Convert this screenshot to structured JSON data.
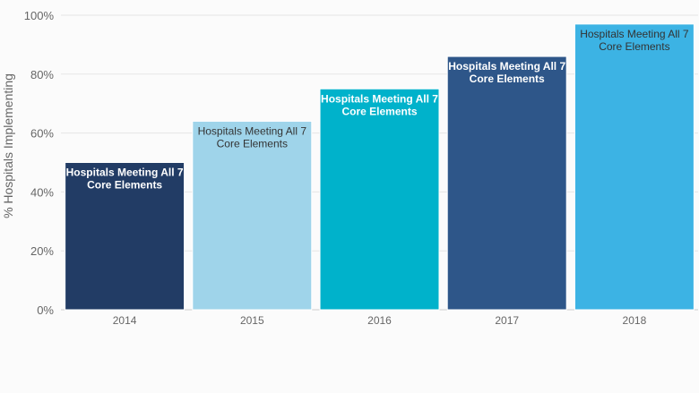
{
  "chart_data": {
    "type": "bar",
    "title": "",
    "xlabel": "",
    "ylabel": "% Hospitals Implementing",
    "ylim": [
      0,
      100
    ],
    "y_tick_values": [
      0,
      20,
      40,
      60,
      80,
      100
    ],
    "y_tick_labels": [
      "0%",
      "20%",
      "40%",
      "60%",
      "80%",
      "100%"
    ],
    "grid": true,
    "legend": "none",
    "categories": [
      "2014",
      "2015",
      "2016",
      "2017",
      "2018"
    ],
    "values": [
      50,
      64,
      75,
      86,
      97
    ],
    "bar_labels": [
      [
        "Hospitals Meeting All 7",
        "Core Elements"
      ],
      [
        "Hospitals Meeting All 7",
        "Core Elements"
      ],
      [
        "Hospitals Meeting All 7",
        "Core Elements"
      ],
      [
        "Hospitals Meeting All 7",
        "Core Elements"
      ],
      [
        "Hospitals Meeting All 7",
        "Core Elements"
      ]
    ],
    "bar_colors": [
      "#223c65",
      "#9fd4ea",
      "#00b2cb",
      "#2e5689",
      "#3cb3e4"
    ],
    "label_colors": [
      "#ffffff",
      "#333333",
      "#ffffff",
      "#ffffff",
      "#333333"
    ],
    "label_bold": [
      true,
      false,
      true,
      true,
      false
    ]
  }
}
